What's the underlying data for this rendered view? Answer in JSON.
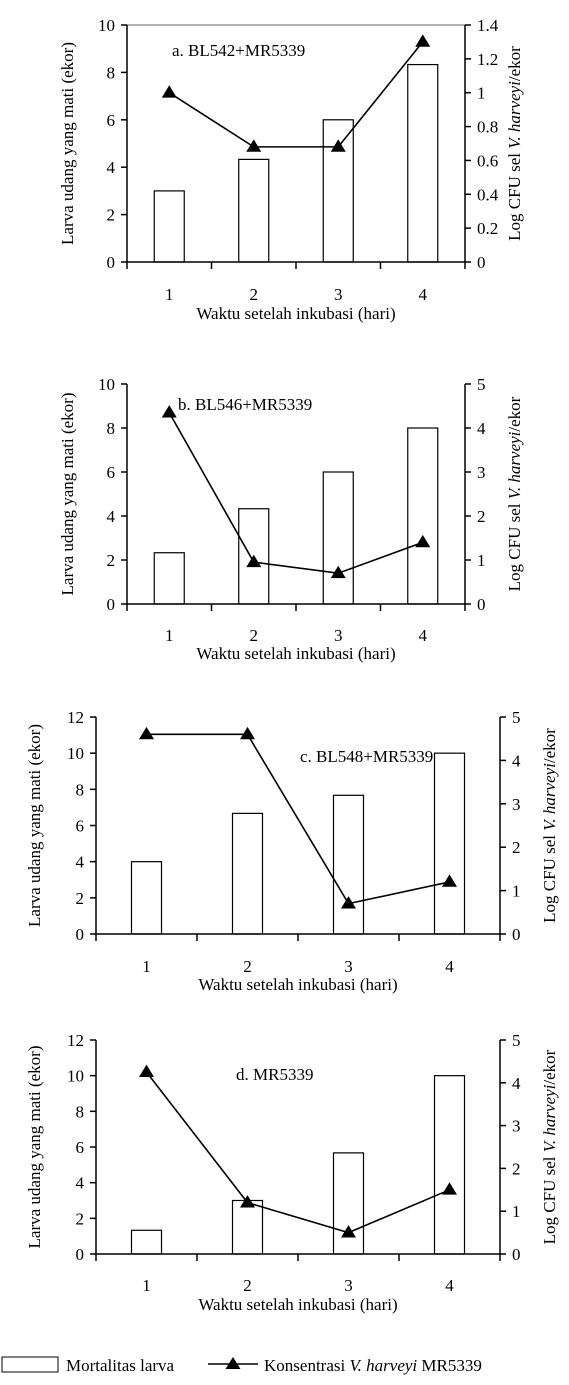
{
  "figure": {
    "legend": {
      "bar_label": "Mortalitas larva",
      "line_label_prefix": "Konsentrasi ",
      "line_label_italic": "V. harveyi",
      "line_label_suffix": " MR5339"
    }
  },
  "chart_data": [
    {
      "type": "bar",
      "panel_label": "a. BL542+MR5339",
      "categories": [
        "1",
        "2",
        "3",
        "4"
      ],
      "xlabel": "Waktu setelah inkubasi (hari)",
      "ylabel": "Larva udang yang mati (ekor)",
      "y2label_prefix": "Log CFU sel ",
      "y2label_italic": "V. harveyi",
      "y2label_suffix": "/ekor",
      "ylim": [
        0,
        10
      ],
      "yticks": [
        0,
        2,
        4,
        6,
        8,
        10
      ],
      "y2lim": [
        0,
        1.4
      ],
      "y2ticks": [
        0,
        0.2,
        0.4,
        0.6,
        0.8,
        1,
        1.2,
        1.4
      ],
      "y2tick_labels": [
        "0",
        "0.2",
        "0.4",
        "0.6",
        "0.8",
        "1",
        "1.2",
        "1.4"
      ],
      "series": [
        {
          "name": "Mortalitas larva",
          "axis": "left",
          "kind": "bar",
          "values": [
            3.0,
            4.33,
            6.0,
            8.33
          ]
        },
        {
          "name": "Konsentrasi V. harveyi MR5339",
          "axis": "right",
          "kind": "line",
          "values": [
            1.0,
            0.68,
            0.68,
            1.3
          ]
        }
      ]
    },
    {
      "type": "bar",
      "panel_label": "b. BL546+MR5339",
      "categories": [
        "1",
        "2",
        "3",
        "4"
      ],
      "xlabel": "Waktu setelah inkubasi (hari)",
      "ylabel": "Larva udang yang mati (ekor)",
      "y2label_prefix": "Log CFU sel ",
      "y2label_italic": "V. harveyi",
      "y2label_suffix": "/ekor",
      "ylim": [
        0,
        10
      ],
      "yticks": [
        0,
        2,
        4,
        6,
        8,
        10
      ],
      "y2lim": [
        0,
        5
      ],
      "y2ticks": [
        0,
        1,
        2,
        3,
        4,
        5
      ],
      "y2tick_labels": [
        "0",
        "1",
        "2",
        "3",
        "4",
        "5"
      ],
      "series": [
        {
          "name": "Mortalitas larva",
          "axis": "left",
          "kind": "bar",
          "values": [
            2.33,
            4.33,
            6.0,
            8.0
          ]
        },
        {
          "name": "Konsentrasi V. harveyi MR5339",
          "axis": "right",
          "kind": "line",
          "values": [
            4.35,
            0.95,
            0.7,
            1.4
          ]
        }
      ]
    },
    {
      "type": "bar",
      "panel_label": "c. BL548+MR5339",
      "categories": [
        "1",
        "2",
        "3",
        "4"
      ],
      "xlabel": "Waktu setelah inkubasi (hari)",
      "ylabel": "Larva udang yang mati (ekor)",
      "y2label_prefix": "Log CFU sel ",
      "y2label_italic": "V. harveyi",
      "y2label_suffix": "/ekor",
      "ylim": [
        0,
        12
      ],
      "yticks": [
        0,
        2,
        4,
        6,
        8,
        10,
        12
      ],
      "y2lim": [
        0,
        5
      ],
      "y2ticks": [
        0,
        1,
        2,
        3,
        4,
        5
      ],
      "y2tick_labels": [
        "0",
        "1",
        "2",
        "3",
        "4",
        "5"
      ],
      "series": [
        {
          "name": "Mortalitas larva",
          "axis": "left",
          "kind": "bar",
          "values": [
            4.0,
            6.67,
            7.67,
            10.0
          ]
        },
        {
          "name": "Konsentrasi V. harveyi MR5339",
          "axis": "right",
          "kind": "line",
          "values": [
            4.6,
            4.6,
            0.7,
            1.2
          ]
        }
      ]
    },
    {
      "type": "bar",
      "panel_label": "d. MR5339",
      "categories": [
        "1",
        "2",
        "3",
        "4"
      ],
      "xlabel": "Waktu setelah inkubasi (hari)",
      "ylabel": "Larva udang yang mati (ekor)",
      "y2label_prefix": "Log CFU sel ",
      "y2label_italic": "V. harveyi",
      "y2label_suffix": "/ekor",
      "ylim": [
        0,
        12
      ],
      "yticks": [
        0,
        2,
        4,
        6,
        8,
        10,
        12
      ],
      "y2lim": [
        0,
        5
      ],
      "y2ticks": [
        0,
        1,
        2,
        3,
        4,
        5
      ],
      "y2tick_labels": [
        "0",
        "1",
        "2",
        "3",
        "4",
        "5"
      ],
      "series": [
        {
          "name": "Mortalitas larva",
          "axis": "left",
          "kind": "bar",
          "values": [
            1.33,
            3.0,
            5.67,
            10.0
          ]
        },
        {
          "name": "Konsentrasi V. harveyi MR5339",
          "axis": "right",
          "kind": "line",
          "values": [
            4.25,
            1.2,
            0.5,
            1.5
          ]
        }
      ]
    }
  ]
}
